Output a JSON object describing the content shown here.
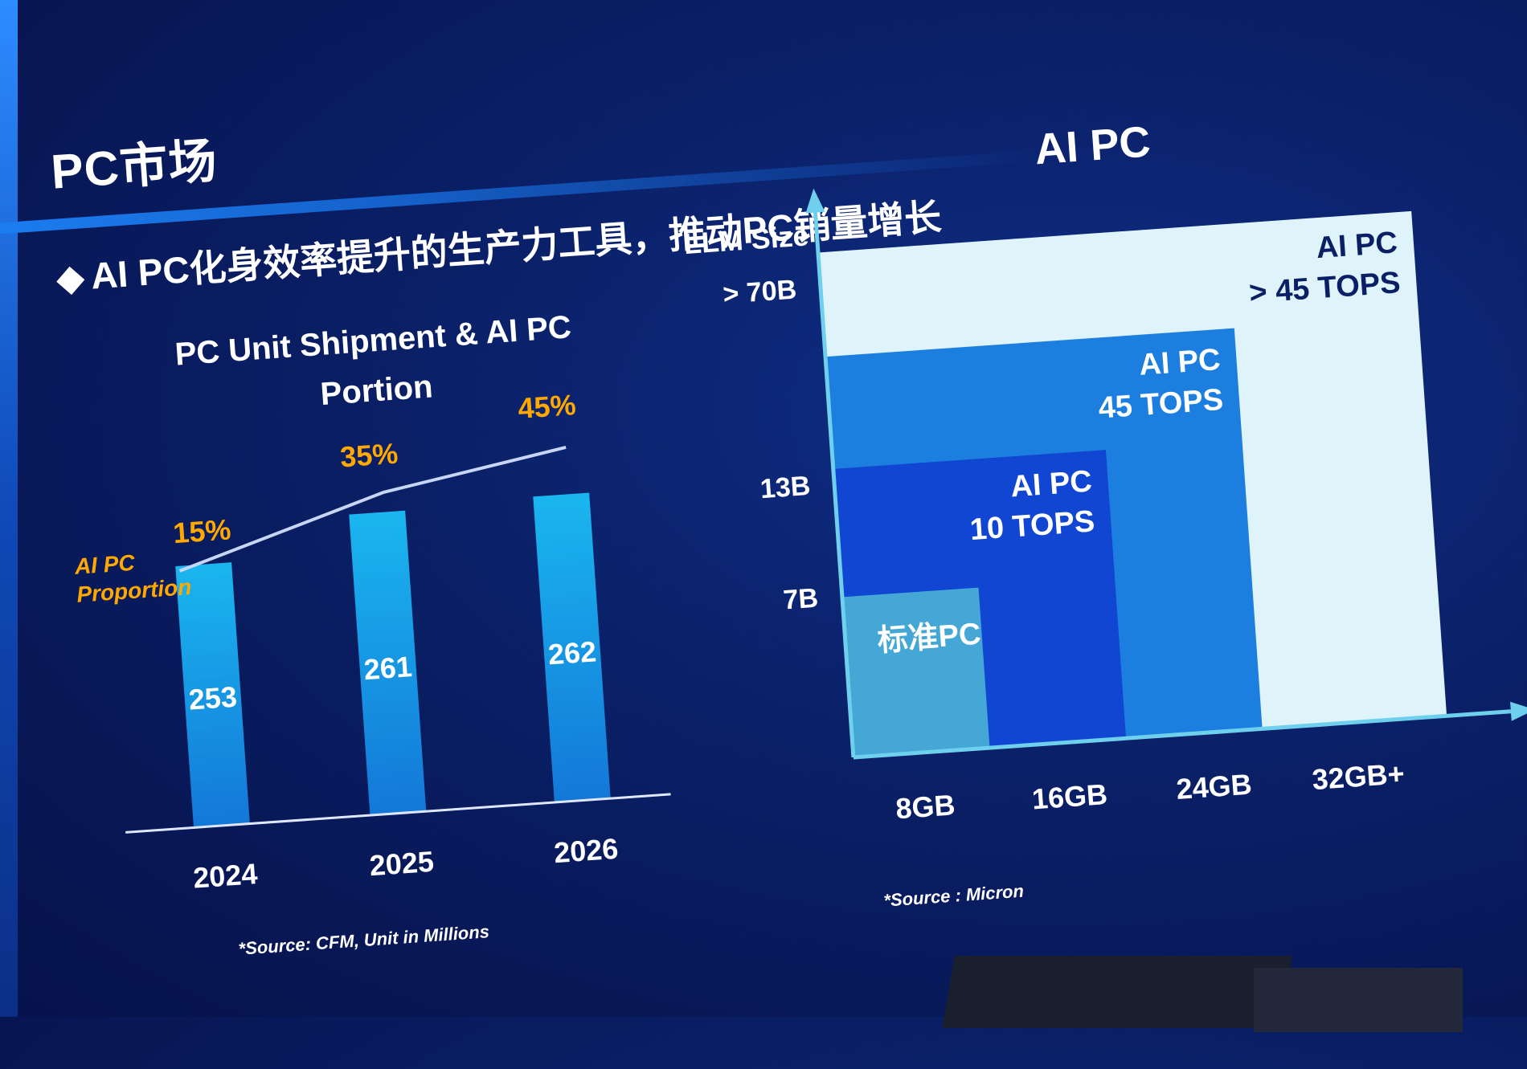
{
  "slide": {
    "title": "PC市场",
    "bullet_symbol": "◆",
    "bullet": "AI PC化身效率提升的生产力工具，推动PC销量增长"
  },
  "colors": {
    "bar": "#1ab6ef",
    "accent_orange": "#ffa800",
    "line": "#c8d6f5",
    "tier_45plus": "#dff3fb",
    "tier_45": "#1c7fe0",
    "tier_10": "#1146d2",
    "tier_std": "#4fb8d6"
  },
  "chart_data": [
    {
      "type": "bar",
      "title": [
        "PC Unit Shipment & AI PC",
        "Portion"
      ],
      "categories": [
        "2024",
        "2025",
        "2026"
      ],
      "series": [
        {
          "values": [
            253,
            261,
            262
          ],
          "data_labels": [
            "253",
            "261",
            "262"
          ]
        }
      ],
      "line_series": {
        "name": "AI PC Proportion",
        "name_lines": [
          "AI PC",
          "Proportion"
        ],
        "values": [
          15,
          35,
          45
        ],
        "data_labels": [
          "15%",
          "35%",
          "45%"
        ]
      },
      "footnote": "*Source: CFM, Unit in Millions"
    },
    {
      "type": "area",
      "title": "AI PC",
      "ylabel": "LLM Size",
      "y_ticks": [
        "7B",
        "13B",
        "> 70B"
      ],
      "x_ticks": [
        "8GB",
        "16GB",
        "24GB",
        "32GB+"
      ],
      "tiers": [
        {
          "label": [
            "AI PC",
            "> 45 TOPS"
          ],
          "memory": "32GB+",
          "llm": "> 70B"
        },
        {
          "label": [
            "AI PC",
            "45 TOPS"
          ],
          "memory": "24GB",
          "llm": "13B"
        },
        {
          "label": [
            "AI PC",
            "10 TOPS"
          ],
          "memory": "16GB",
          "llm": "7B"
        },
        {
          "label": [
            "标准PC"
          ],
          "memory": "8GB",
          "llm": ""
        }
      ],
      "footnote": "*Source : Micron"
    }
  ]
}
